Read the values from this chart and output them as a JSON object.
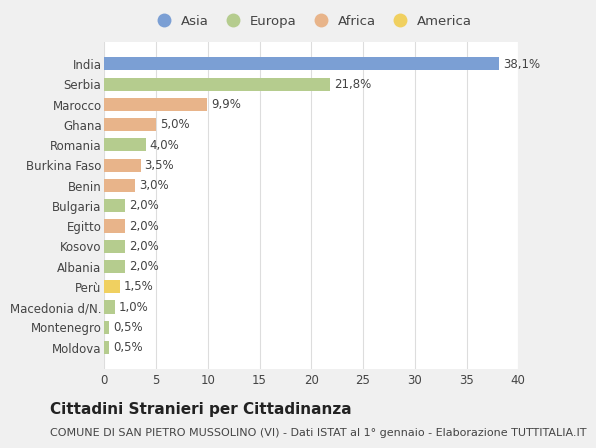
{
  "countries": [
    "India",
    "Serbia",
    "Marocco",
    "Ghana",
    "Romania",
    "Burkina Faso",
    "Benin",
    "Bulgaria",
    "Egitto",
    "Kosovo",
    "Albania",
    "Perù",
    "Macedonia d/N.",
    "Montenegro",
    "Moldova"
  ],
  "values": [
    38.1,
    21.8,
    9.9,
    5.0,
    4.0,
    3.5,
    3.0,
    2.0,
    2.0,
    2.0,
    2.0,
    1.5,
    1.0,
    0.5,
    0.5
  ],
  "labels": [
    "38,1%",
    "21,8%",
    "9,9%",
    "5,0%",
    "4,0%",
    "3,5%",
    "3,0%",
    "2,0%",
    "2,0%",
    "2,0%",
    "2,0%",
    "1,5%",
    "1,0%",
    "0,5%",
    "0,5%"
  ],
  "continents": [
    "Asia",
    "Europa",
    "Africa",
    "Africa",
    "Europa",
    "Africa",
    "Africa",
    "Europa",
    "Africa",
    "Europa",
    "Europa",
    "America",
    "Europa",
    "Europa",
    "Europa"
  ],
  "continent_colors": {
    "Asia": "#7b9fd4",
    "Europa": "#b5cc8e",
    "Africa": "#e8b48a",
    "America": "#f0d060"
  },
  "legend_order": [
    "Asia",
    "Europa",
    "Africa",
    "America"
  ],
  "title": "Cittadini Stranieri per Cittadinanza",
  "subtitle": "COMUNE DI SAN PIETRO MUSSOLINO (VI) - Dati ISTAT al 1° gennaio - Elaborazione TUTTITALIA.IT",
  "xlim": [
    0,
    40
  ],
  "xticks": [
    0,
    5,
    10,
    15,
    20,
    25,
    30,
    35,
    40
  ],
  "outer_bg": "#f0f0f0",
  "plot_bg": "#ffffff",
  "grid_color": "#dddddd",
  "text_color": "#444444",
  "title_fontsize": 11,
  "subtitle_fontsize": 8,
  "label_fontsize": 8.5,
  "tick_fontsize": 8.5,
  "legend_fontsize": 9.5
}
